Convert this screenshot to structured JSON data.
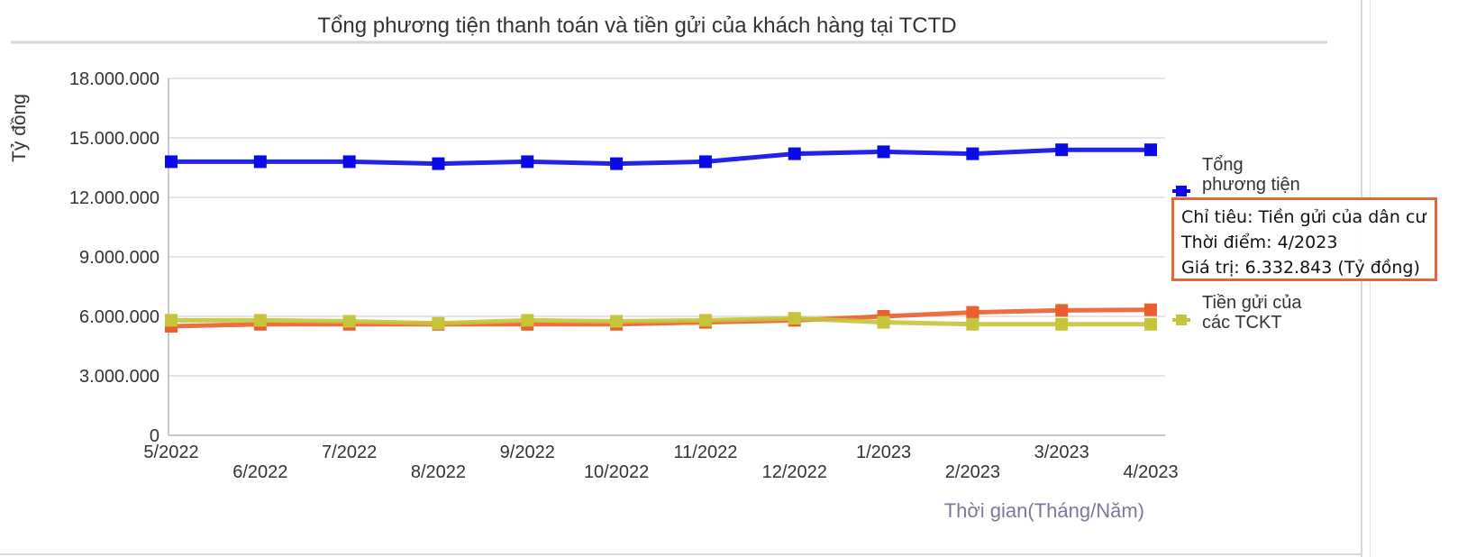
{
  "chart_data": {
    "type": "line",
    "title": "Tổng phương tiện thanh toán và tiền gửi của khách hàng tại TCTD",
    "ylabel": "Tỷ đồng",
    "xlabel": "Thời gian(Tháng/Năm)",
    "ylim": [
      0,
      18000000
    ],
    "y_ticks": [
      "0",
      "3.000.000",
      "6.000.000",
      "9.000.000",
      "12.000.000",
      "15.000.000",
      "18.000.000"
    ],
    "y_tick_values": [
      0,
      3000000,
      6000000,
      9000000,
      12000000,
      15000000,
      18000000
    ],
    "categories": [
      "5/2022",
      "6/2022",
      "7/2022",
      "8/2022",
      "9/2022",
      "10/2022",
      "11/2022",
      "12/2022",
      "1/2023",
      "2/2023",
      "3/2023",
      "4/2023"
    ],
    "grid": true,
    "legend_position": "right",
    "series": [
      {
        "name": "Tổng phương tiện thanh toán",
        "legend_lines": [
          "Tổng",
          "phương tiện"
        ],
        "color": "#0a0ae6",
        "values": [
          13800000,
          13800000,
          13800000,
          13700000,
          13800000,
          13700000,
          13800000,
          14200000,
          14300000,
          14200000,
          14400000,
          14400000
        ]
      },
      {
        "name": "Tiền gửi của dân cư",
        "legend_lines": [],
        "color": "#ea5f2c",
        "values": [
          5500000,
          5600000,
          5600000,
          5600000,
          5600000,
          5600000,
          5700000,
          5800000,
          6000000,
          6200000,
          6300000,
          6332843
        ]
      },
      {
        "name": "Tiền gửi của các TCKT",
        "legend_lines": [
          "Tiền gửi của",
          "các TCKT"
        ],
        "color": "#c5c43a",
        "values": [
          5800000,
          5800000,
          5750000,
          5650000,
          5800000,
          5750000,
          5800000,
          5900000,
          5700000,
          5600000,
          5600000,
          5600000
        ]
      }
    ],
    "tooltip": {
      "line1": "Chỉ tiêu: Tiền gửi của dân cư",
      "line2": "Thời điểm: 4/2023",
      "line3": "Giá trị: 6.332.843 (Tỷ đồng)"
    }
  }
}
